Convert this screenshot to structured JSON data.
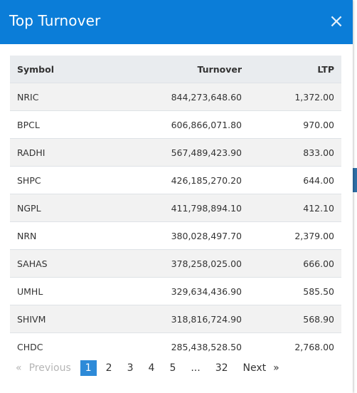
{
  "modal": {
    "title": "Top Turnover",
    "close_label": "×"
  },
  "table": {
    "headers": {
      "symbol": "Symbol",
      "turnover": "Turnover",
      "ltp": "LTP"
    },
    "rows": [
      {
        "symbol": "NRIC",
        "turnover": "844,273,648.60",
        "ltp": "1,372.00"
      },
      {
        "symbol": "BPCL",
        "turnover": "606,866,071.80",
        "ltp": "970.00"
      },
      {
        "symbol": "RADHI",
        "turnover": "567,489,423.90",
        "ltp": "833.00"
      },
      {
        "symbol": "SHPC",
        "turnover": "426,185,270.20",
        "ltp": "644.00"
      },
      {
        "symbol": "NGPL",
        "turnover": "411,798,894.10",
        "ltp": "412.10"
      },
      {
        "symbol": "NRN",
        "turnover": "380,028,497.70",
        "ltp": "2,379.00"
      },
      {
        "symbol": "SAHAS",
        "turnover": "378,258,025.00",
        "ltp": "666.00"
      },
      {
        "symbol": "UMHL",
        "turnover": "329,634,436.90",
        "ltp": "585.50"
      },
      {
        "symbol": "SHIVM",
        "turnover": "318,816,724.90",
        "ltp": "568.90"
      },
      {
        "symbol": "CHDC",
        "turnover": "285,438,528.50",
        "ltp": "2,768.00"
      }
    ]
  },
  "pagination": {
    "previous_arrow": "«",
    "previous_label": "Previous",
    "pages": [
      "1",
      "2",
      "3",
      "4",
      "5"
    ],
    "active_page": "1",
    "ellipsis": "...",
    "last_page": "32",
    "next_label": "Next",
    "next_arrow": "»"
  },
  "colors": {
    "header_bg": "#0b7dd8",
    "active_page_bg": "#2d8ad8",
    "table_head_bg": "#e9ecef",
    "stripe_bg": "#f2f2f2"
  },
  "icons": {
    "close": "close-icon"
  }
}
